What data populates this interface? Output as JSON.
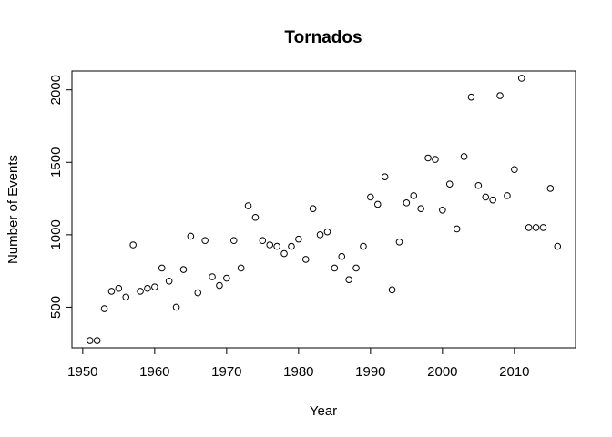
{
  "chart_data": {
    "type": "scatter",
    "title": "Tornados",
    "xlabel": "Year",
    "ylabel": "Number of Events",
    "xlim": [
      1948.5,
      2018.5
    ],
    "ylim": [
      220,
      2130
    ],
    "xticks": [
      1950,
      1960,
      1970,
      1980,
      1990,
      2000,
      2010
    ],
    "yticks": [
      500,
      1000,
      1500,
      2000
    ],
    "grid": false,
    "points": [
      {
        "x": 1951,
        "y": 270
      },
      {
        "x": 1952,
        "y": 270
      },
      {
        "x": 1953,
        "y": 490
      },
      {
        "x": 1954,
        "y": 610
      },
      {
        "x": 1955,
        "y": 630
      },
      {
        "x": 1956,
        "y": 570
      },
      {
        "x": 1957,
        "y": 930
      },
      {
        "x": 1958,
        "y": 610
      },
      {
        "x": 1959,
        "y": 630
      },
      {
        "x": 1960,
        "y": 640
      },
      {
        "x": 1961,
        "y": 770
      },
      {
        "x": 1962,
        "y": 680
      },
      {
        "x": 1963,
        "y": 500
      },
      {
        "x": 1964,
        "y": 760
      },
      {
        "x": 1965,
        "y": 990
      },
      {
        "x": 1966,
        "y": 600
      },
      {
        "x": 1967,
        "y": 960
      },
      {
        "x": 1968,
        "y": 710
      },
      {
        "x": 1969,
        "y": 650
      },
      {
        "x": 1970,
        "y": 700
      },
      {
        "x": 1971,
        "y": 960
      },
      {
        "x": 1972,
        "y": 770
      },
      {
        "x": 1973,
        "y": 1200
      },
      {
        "x": 1974,
        "y": 1120
      },
      {
        "x": 1975,
        "y": 960
      },
      {
        "x": 1976,
        "y": 930
      },
      {
        "x": 1977,
        "y": 920
      },
      {
        "x": 1978,
        "y": 870
      },
      {
        "x": 1979,
        "y": 920
      },
      {
        "x": 1980,
        "y": 970
      },
      {
        "x": 1981,
        "y": 830
      },
      {
        "x": 1982,
        "y": 1180
      },
      {
        "x": 1983,
        "y": 1000
      },
      {
        "x": 1984,
        "y": 1020
      },
      {
        "x": 1985,
        "y": 770
      },
      {
        "x": 1986,
        "y": 850
      },
      {
        "x": 1987,
        "y": 690
      },
      {
        "x": 1988,
        "y": 770
      },
      {
        "x": 1989,
        "y": 920
      },
      {
        "x": 1990,
        "y": 1260
      },
      {
        "x": 1991,
        "y": 1210
      },
      {
        "x": 1992,
        "y": 1400
      },
      {
        "x": 1993,
        "y": 620
      },
      {
        "x": 1994,
        "y": 950
      },
      {
        "x": 1995,
        "y": 1220
      },
      {
        "x": 1996,
        "y": 1270
      },
      {
        "x": 1997,
        "y": 1180
      },
      {
        "x": 1998,
        "y": 1530
      },
      {
        "x": 1999,
        "y": 1520
      },
      {
        "x": 2000,
        "y": 1170
      },
      {
        "x": 2001,
        "y": 1350
      },
      {
        "x": 2002,
        "y": 1040
      },
      {
        "x": 2003,
        "y": 1540
      },
      {
        "x": 2004,
        "y": 1950
      },
      {
        "x": 2005,
        "y": 1340
      },
      {
        "x": 2006,
        "y": 1260
      },
      {
        "x": 2007,
        "y": 1240
      },
      {
        "x": 2008,
        "y": 1960
      },
      {
        "x": 2009,
        "y": 1270
      },
      {
        "x": 2010,
        "y": 1450
      },
      {
        "x": 2011,
        "y": 2080
      },
      {
        "x": 2012,
        "y": 1050
      },
      {
        "x": 2013,
        "y": 1050
      },
      {
        "x": 2014,
        "y": 1050
      },
      {
        "x": 2015,
        "y": 1320
      },
      {
        "x": 2016,
        "y": 920
      }
    ]
  }
}
